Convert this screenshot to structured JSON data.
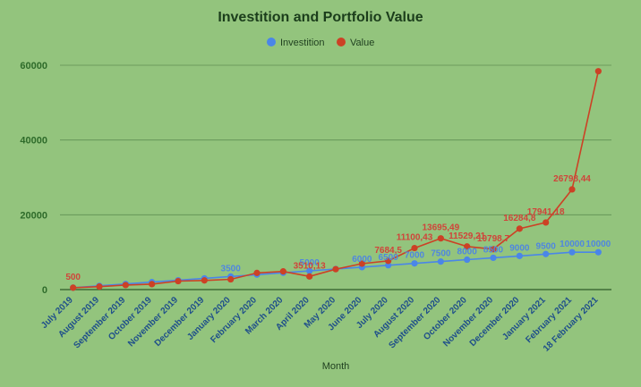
{
  "chart_data": {
    "type": "line",
    "title": "Investition and Portfolio Value",
    "xlabel": "Month",
    "ylabel": "",
    "ylim": [
      0,
      60000
    ],
    "yticks": [
      "0",
      "20000",
      "40000",
      "60000"
    ],
    "grid": true,
    "legend_position": "top",
    "categories": [
      "July 2019",
      "August 2019",
      "September 2019",
      "October 2019",
      "November 2019",
      "December 2019",
      "January 2020",
      "February 2020",
      "March 2020",
      "April 2020",
      "May 2020",
      "June 2020",
      "July 2020",
      "August 2020",
      "September 2020",
      "October 2020",
      "November 2020",
      "December 2020",
      "January 2021",
      "February 2021",
      "18 February 2021"
    ],
    "series": [
      {
        "name": "Investition",
        "color": "#4a86e8",
        "values": [
          500,
          1000,
          1500,
          2000,
          2500,
          3000,
          3500,
          4000,
          4500,
          5000,
          5500,
          6000,
          6500,
          7000,
          7500,
          8000,
          8500,
          9000,
          9500,
          10000,
          10000
        ],
        "labels": [
          "",
          "",
          "",
          "",
          "",
          "",
          "3500",
          "",
          "",
          "5000",
          "",
          "6000",
          "6500",
          "7000",
          "7500",
          "8000",
          "8500",
          "9000",
          "9500",
          "10000",
          "10000"
        ]
      },
      {
        "name": "Value",
        "color": "#cc4125",
        "values": [
          500,
          800,
          1210,
          1460,
          2260,
          2450,
          2740.29,
          4454,
          4863.16,
          3510.13,
          5453.81,
          6936.9,
          7684.5,
          11100.43,
          13695.49,
          11529.21,
          10798.7,
          16284.8,
          17941.18,
          26798.44,
          58400
        ],
        "labels": [
          "500",
          "",
          "",
          "",
          "",
          "",
          "",
          "",
          "",
          "3510,13",
          "",
          "",
          "7684,5",
          "11100,43",
          "13695,49",
          "11529,21",
          "10798,7",
          "16284,8",
          "17941,18",
          "26798,44",
          ""
        ]
      }
    ]
  }
}
